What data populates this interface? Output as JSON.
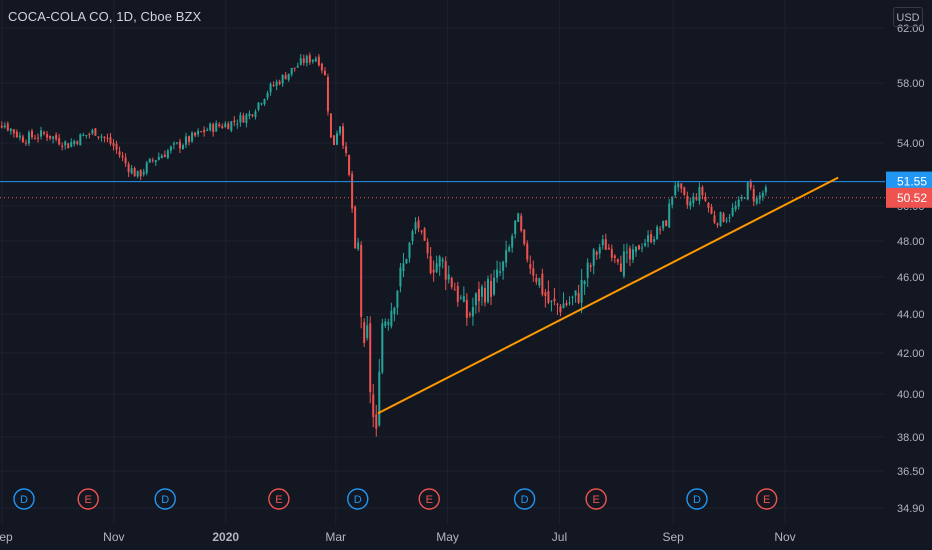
{
  "header": {
    "title": "COCA-COLA CO, 1D, Cboe BZX",
    "currency": "USD"
  },
  "colors": {
    "background": "#131722",
    "grid": "#1e222d",
    "axis_text": "#b2b5be",
    "up": "#26a69a",
    "down": "#ef5350",
    "trendline": "#ff9800",
    "hline": "#2196f3",
    "last_price": "#ef5350"
  },
  "chart_data": {
    "type": "candlestick",
    "title": "COCA-COLA CO, 1D, Cboe BZX",
    "y_ticks": [
      "34.90",
      "36.50",
      "38.00",
      "40.00",
      "42.00",
      "44.00",
      "46.00",
      "48.00",
      "50.00",
      "54.00",
      "58.00",
      "62.00"
    ],
    "x_ticks": [
      "Sep",
      "Nov",
      "2020",
      "Mar",
      "May",
      "Jul",
      "Sep",
      "Nov"
    ],
    "horizontal_line": {
      "value": 51.55,
      "label": "51.55"
    },
    "last_price": {
      "value": 50.52,
      "label": "50.52"
    },
    "trendline": {
      "from": {
        "date": "2020-03-24",
        "price": 39.1
      },
      "to": {
        "date": "2020-11-30",
        "price": 51.8
      }
    },
    "events": [
      {
        "type": "D",
        "date": "2019-09-13"
      },
      {
        "type": "E",
        "date": "2019-10-18"
      },
      {
        "type": "D",
        "date": "2019-11-29"
      },
      {
        "type": "E",
        "date": "2020-01-30"
      },
      {
        "type": "D",
        "date": "2020-03-13"
      },
      {
        "type": "E",
        "date": "2020-04-21"
      },
      {
        "type": "D",
        "date": "2020-06-12"
      },
      {
        "type": "E",
        "date": "2020-07-21"
      },
      {
        "type": "D",
        "date": "2020-09-14"
      },
      {
        "type": "E",
        "date": "2020-10-22"
      }
    ],
    "close_path": [
      {
        "date": "2019-08-22",
        "close": 55.8
      },
      {
        "date": "2019-09-03",
        "close": 55.2
      },
      {
        "date": "2019-09-12",
        "close": 54.3
      },
      {
        "date": "2019-09-25",
        "close": 54.6
      },
      {
        "date": "2019-10-07",
        "close": 53.9
      },
      {
        "date": "2019-10-14",
        "close": 54.4
      },
      {
        "date": "2019-10-22",
        "close": 54.8
      },
      {
        "date": "2019-11-01",
        "close": 53.8
      },
      {
        "date": "2019-11-08",
        "close": 52.6
      },
      {
        "date": "2019-11-14",
        "close": 51.9
      },
      {
        "date": "2019-11-22",
        "close": 52.9
      },
      {
        "date": "2019-12-02",
        "close": 53.6
      },
      {
        "date": "2019-12-13",
        "close": 54.3
      },
      {
        "date": "2019-12-23",
        "close": 55.0
      },
      {
        "date": "2020-01-03",
        "close": 55.3
      },
      {
        "date": "2020-01-14",
        "close": 55.9
      },
      {
        "date": "2020-01-24",
        "close": 57.5
      },
      {
        "date": "2020-02-03",
        "close": 58.6
      },
      {
        "date": "2020-02-12",
        "close": 59.6
      },
      {
        "date": "2020-02-20",
        "close": 59.9
      },
      {
        "date": "2020-02-24",
        "close": 58.6
      },
      {
        "date": "2020-02-28",
        "close": 53.5
      },
      {
        "date": "2020-03-03",
        "close": 55.5
      },
      {
        "date": "2020-03-06",
        "close": 53.5
      },
      {
        "date": "2020-03-09",
        "close": 51.3
      },
      {
        "date": "2020-03-12",
        "close": 46.6
      },
      {
        "date": "2020-03-13",
        "close": 48.3
      },
      {
        "date": "2020-03-16",
        "close": 41.4
      },
      {
        "date": "2020-03-18",
        "close": 43.2
      },
      {
        "date": "2020-03-20",
        "close": 40.0
      },
      {
        "date": "2020-03-23",
        "close": 37.6
      },
      {
        "date": "2020-03-24",
        "close": 40.7
      },
      {
        "date": "2020-03-26",
        "close": 43.5
      },
      {
        "date": "2020-03-31",
        "close": 44.3
      },
      {
        "date": "2020-04-07",
        "close": 46.6
      },
      {
        "date": "2020-04-14",
        "close": 49.2
      },
      {
        "date": "2020-04-21",
        "close": 46.8
      },
      {
        "date": "2020-04-28",
        "close": 46.8
      },
      {
        "date": "2020-05-05",
        "close": 45.4
      },
      {
        "date": "2020-05-12",
        "close": 43.8
      },
      {
        "date": "2020-05-19",
        "close": 45.2
      },
      {
        "date": "2020-05-26",
        "close": 45.5
      },
      {
        "date": "2020-06-02",
        "close": 46.9
      },
      {
        "date": "2020-06-08",
        "close": 49.5
      },
      {
        "date": "2020-06-12",
        "close": 47.4
      },
      {
        "date": "2020-06-19",
        "close": 46.0
      },
      {
        "date": "2020-06-26",
        "close": 44.4
      },
      {
        "date": "2020-07-02",
        "close": 44.5
      },
      {
        "date": "2020-07-10",
        "close": 44.8
      },
      {
        "date": "2020-07-17",
        "close": 46.4
      },
      {
        "date": "2020-07-24",
        "close": 47.9
      },
      {
        "date": "2020-07-31",
        "close": 47.3
      },
      {
        "date": "2020-08-07",
        "close": 46.7
      },
      {
        "date": "2020-08-14",
        "close": 47.8
      },
      {
        "date": "2020-08-21",
        "close": 48.3
      },
      {
        "date": "2020-08-28",
        "close": 49.0
      },
      {
        "date": "2020-09-02",
        "close": 51.5
      },
      {
        "date": "2020-09-09",
        "close": 50.0
      },
      {
        "date": "2020-09-16",
        "close": 51.0
      },
      {
        "date": "2020-09-23",
        "close": 49.2
      },
      {
        "date": "2020-09-30",
        "close": 49.4
      },
      {
        "date": "2020-10-07",
        "close": 50.1
      },
      {
        "date": "2020-10-12",
        "close": 51.3
      },
      {
        "date": "2020-10-16",
        "close": 50.3
      },
      {
        "date": "2020-10-21",
        "close": 51.0
      },
      {
        "date": "2020-10-23",
        "close": 50.52
      }
    ]
  }
}
